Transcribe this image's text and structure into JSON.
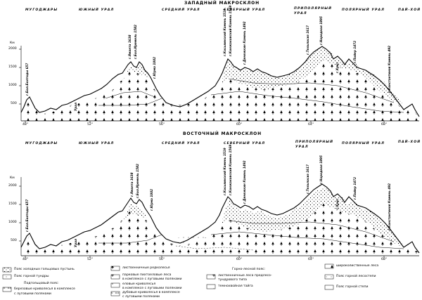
{
  "top": {
    "title": "ЗАПАДНЫЙ МАКРОСКЛОН",
    "regions": [
      {
        "label": "МУГОДЖАРЫ"
      },
      {
        "label": "ЮЖНЫЙ УРАЛ"
      },
      {
        "label": "СРЕДНИЙ УРАЛ"
      },
      {
        "label": "СЕВЕРНЫЙ УРАЛ"
      },
      {
        "label": "ПРИПОЛЯРНЫЙ"
      },
      {
        "label": "УРАЛ"
      },
      {
        "label": "ПОЛЯРНЫЙ УРАЛ"
      },
      {
        "label": "ПАЙ-ХОЙ"
      }
    ],
    "unit": "Км",
    "yticks": [
      "2000",
      "1500",
      "1000",
      "500"
    ],
    "xticks": [
      "48°",
      "52°",
      "56°",
      "60°",
      "64°",
      "68°"
    ],
    "peaks": [
      "г.Бол.Болтоды 657",
      "Урал",
      "г.Яманта 1638",
      "г.Бол.Иремель 1582",
      "г.Юрма 1002",
      "г.Косьвинский Камень 1519",
      "г.Конжаковский Камень 1569",
      "г.Денежкин Камень 1492",
      "г.Тельпосиз 1617",
      "г.Народная 1895",
      "г.Хрит",
      "г.Пайер 1472",
      "г.Константинов Камень 492"
    ]
  },
  "bottom": {
    "title": "ВОСТОЧНЫЙ МАКРОСКЛОН",
    "regions": [
      {
        "label": "МУГОДЖАРЫ"
      },
      {
        "label": "ЮЖНЫЙ УРАЛ"
      },
      {
        "label": "СРЕДНИЙ УРАЛ"
      },
      {
        "label": "СЕВЕРНЫЙ УРАЛ"
      },
      {
        "label": "ПРИПОЛЯРНЫЙ"
      },
      {
        "label": "УРАЛ"
      },
      {
        "label": "ПОЛЯРНЫЙ УРАЛ"
      },
      {
        "label": "ПАЙ-ХОЙ"
      }
    ],
    "unit": "Км",
    "yticks": [
      "2000",
      "1500",
      "1000",
      "500"
    ],
    "xticks": [
      "48°",
      "52°",
      "56°",
      "60°",
      "64°",
      "68°"
    ],
    "peaks": [
      "г.Бол.Болтоды 657",
      "Урал",
      "г.Яманта 1638",
      "г.Бол.Иремель 1582",
      "г.Юрма 1002",
      "г.Косьвинский Камень 1519",
      "г.Конжаковский Камень 1569",
      "г.Денежкин Камень 1492",
      "г.Тельпосиз 1617",
      "г.Народная 1895",
      "г.Хрит",
      "г.Пайер 1472",
      "г.Константинов Камень 492"
    ]
  },
  "legend": {
    "col1": [
      "Пояс холодных гольцовых пустынь",
      "Пояс горной тундры",
      "Подгольцовый пояс:",
      "березовые криволесья в комплексе",
      "с луговыми полянами"
    ],
    "col2": [
      "лиственничные редколесья",
      "парковые пихтоеловые леса",
      "в комплексе с луговыми полянами",
      "еловые криволесья",
      "в комплексе с луговыми полянами",
      "дубовые криволесья в комплексе",
      "с луговыми полянами"
    ],
    "col3": [
      "Горно-лесной пояс:",
      "лиственничные леса предлесо-",
      "тундрового типа",
      "темнохвойная тайга"
    ],
    "col4": [
      "широколиственные леса",
      "Пояс горной лесостепи",
      "Пояс горной степи"
    ]
  }
}
